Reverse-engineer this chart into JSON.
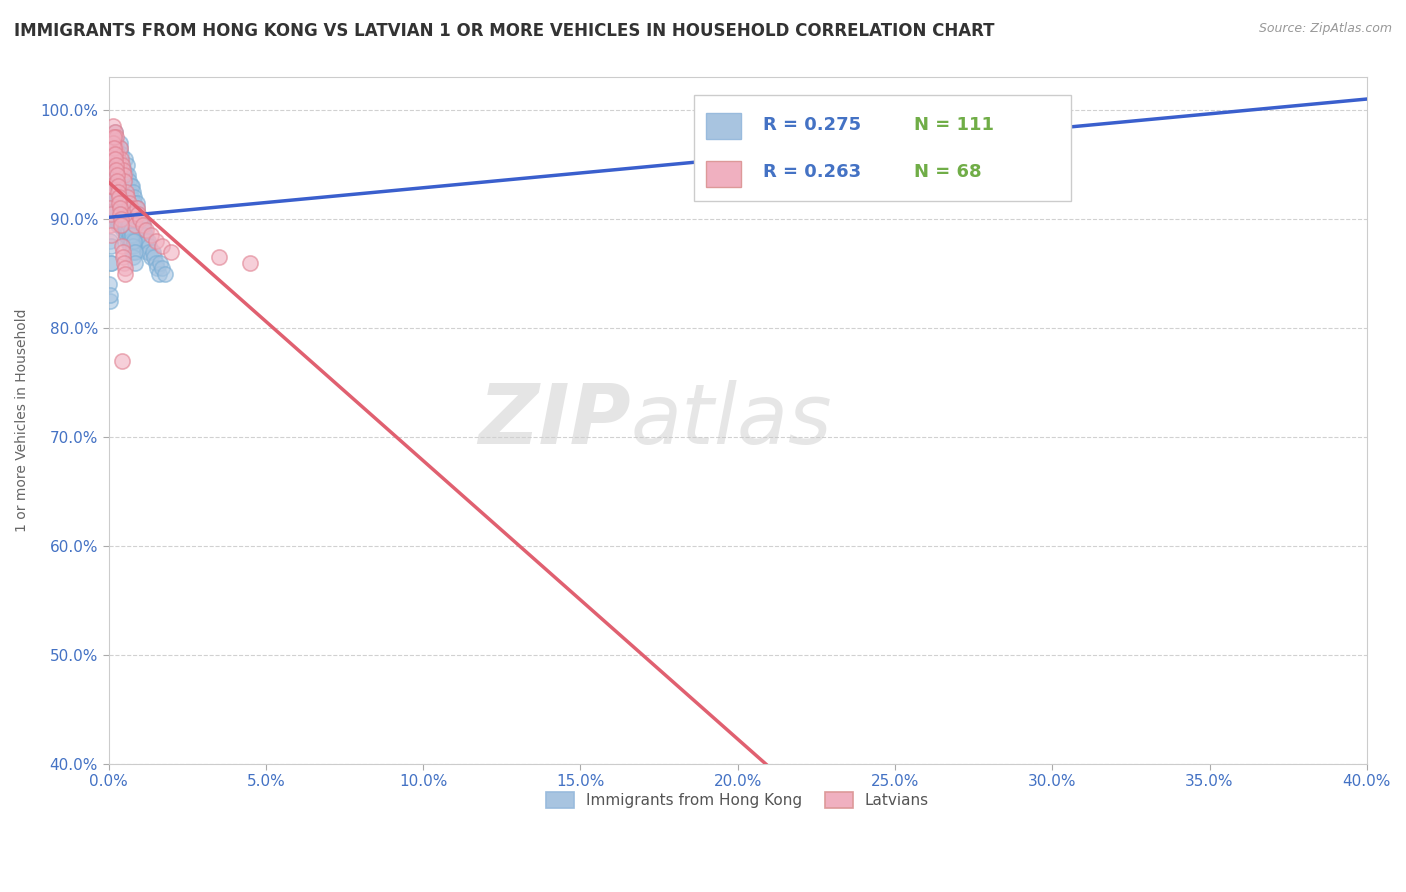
{
  "title": "IMMIGRANTS FROM HONG KONG VS LATVIAN 1 OR MORE VEHICLES IN HOUSEHOLD CORRELATION CHART",
  "source": "Source: ZipAtlas.com",
  "ylabel": "1 or more Vehicles in Household",
  "xmin": 0.0,
  "xmax": 40.0,
  "ymin": 40.0,
  "ymax": 103.0,
  "series1_label": "Immigrants from Hong Kong",
  "series2_label": "Latvians",
  "series1_color": "#a8c4e0",
  "series1_edge": "#7aadd4",
  "series2_color": "#f0b0c0",
  "series2_edge": "#e08090",
  "trendline1_color": "#3a5fcd",
  "trendline2_color": "#e06070",
  "series1_R": 0.275,
  "series1_N": 111,
  "series2_R": 0.263,
  "series2_N": 68,
  "legend_R_color": "#4472c4",
  "legend_N_color": "#70ad47",
  "watermark_zip": "ZIP",
  "watermark_atlas": "atlas",
  "bg_color": "#ffffff",
  "grid_color": "#cccccc",
  "tick_label_color": "#4472c4",
  "series1_x": [
    0.05,
    0.08,
    0.1,
    0.12,
    0.15,
    0.18,
    0.2,
    0.22,
    0.25,
    0.28,
    0.3,
    0.32,
    0.35,
    0.38,
    0.4,
    0.42,
    0.45,
    0.48,
    0.5,
    0.52,
    0.55,
    0.58,
    0.6,
    0.62,
    0.65,
    0.68,
    0.7,
    0.72,
    0.75,
    0.78,
    0.8,
    0.82,
    0.85,
    0.88,
    0.9,
    0.92,
    0.95,
    0.98,
    1.0,
    1.02,
    1.05,
    1.08,
    1.1,
    1.12,
    1.15,
    1.18,
    1.2,
    1.22,
    1.25,
    1.28,
    1.3,
    1.35,
    1.4,
    1.45,
    1.5,
    1.55,
    1.6,
    1.65,
    1.7,
    1.8,
    0.03,
    0.04,
    0.06,
    0.07,
    0.09,
    0.11,
    0.13,
    0.14,
    0.16,
    0.17,
    0.19,
    0.21,
    0.23,
    0.24,
    0.26,
    0.27,
    0.29,
    0.31,
    0.33,
    0.34,
    0.36,
    0.37,
    0.39,
    0.41,
    0.43,
    0.44,
    0.46,
    0.47,
    0.49,
    0.51,
    0.53,
    0.54,
    0.56,
    0.57,
    0.59,
    0.61,
    0.63,
    0.64,
    0.66,
    0.67,
    0.69,
    0.71,
    0.73,
    0.74,
    0.76,
    0.77,
    0.79,
    0.81,
    0.83,
    0.84,
    25.0
  ],
  "series1_y": [
    88.0,
    86.0,
    91.0,
    94.0,
    97.5,
    96.0,
    98.0,
    95.5,
    97.0,
    96.5,
    95.0,
    94.5,
    96.5,
    97.0,
    96.0,
    95.0,
    94.0,
    93.5,
    94.5,
    95.5,
    94.0,
    93.0,
    95.0,
    94.0,
    93.5,
    92.5,
    93.0,
    92.0,
    93.0,
    92.5,
    92.0,
    91.5,
    91.0,
    90.5,
    91.5,
    91.0,
    90.5,
    90.0,
    89.5,
    90.0,
    89.0,
    88.5,
    89.5,
    89.0,
    88.5,
    88.0,
    87.5,
    87.0,
    88.0,
    87.5,
    87.0,
    86.5,
    87.0,
    86.5,
    86.0,
    85.5,
    85.0,
    86.0,
    85.5,
    85.0,
    84.0,
    82.5,
    83.0,
    87.5,
    86.0,
    90.0,
    93.5,
    92.5,
    91.5,
    90.5,
    92.0,
    91.0,
    90.0,
    93.0,
    92.0,
    91.0,
    90.5,
    89.5,
    92.5,
    91.5,
    90.5,
    89.5,
    91.5,
    90.5,
    89.5,
    90.0,
    89.0,
    90.5,
    89.5,
    90.5,
    89.5,
    88.5,
    90.0,
    89.0,
    88.0,
    90.0,
    89.0,
    88.0,
    89.5,
    88.5,
    87.5,
    89.0,
    88.0,
    87.0,
    88.5,
    87.5,
    86.5,
    88.0,
    87.0,
    86.0,
    100.0
  ],
  "series2_x": [
    0.05,
    0.08,
    0.1,
    0.12,
    0.15,
    0.18,
    0.2,
    0.22,
    0.25,
    0.28,
    0.3,
    0.32,
    0.35,
    0.38,
    0.4,
    0.42,
    0.45,
    0.48,
    0.5,
    0.55,
    0.6,
    0.65,
    0.7,
    0.75,
    0.8,
    0.85,
    0.9,
    0.95,
    1.0,
    1.1,
    1.2,
    1.35,
    1.5,
    1.7,
    2.0,
    3.5,
    4.5,
    0.03,
    0.04,
    0.06,
    0.07,
    0.09,
    0.11,
    0.13,
    0.14,
    0.16,
    0.17,
    0.19,
    0.21,
    0.23,
    0.24,
    0.26,
    0.27,
    0.29,
    0.31,
    0.33,
    0.34,
    0.36,
    0.37,
    0.39,
    0.41,
    0.43,
    0.44,
    0.46,
    0.47,
    0.49,
    0.51,
    0.53
  ],
  "series2_y": [
    94.0,
    92.0,
    95.5,
    97.5,
    98.5,
    97.0,
    98.0,
    96.5,
    97.5,
    96.0,
    95.5,
    95.0,
    94.5,
    96.5,
    95.5,
    95.0,
    94.5,
    94.0,
    93.5,
    92.5,
    92.0,
    91.5,
    91.0,
    90.5,
    90.0,
    89.5,
    91.0,
    90.5,
    90.0,
    89.5,
    89.0,
    88.5,
    88.0,
    87.5,
    87.0,
    86.5,
    86.0,
    93.0,
    91.0,
    89.5,
    90.5,
    88.5,
    93.0,
    96.0,
    97.0,
    97.5,
    96.5,
    96.0,
    95.5,
    95.0,
    94.5,
    94.0,
    93.5,
    93.0,
    92.5,
    92.0,
    91.5,
    91.0,
    90.5,
    90.0,
    89.5,
    77.0,
    87.5,
    87.0,
    86.5,
    86.0,
    85.5,
    85.0
  ],
  "ytick_labels": [
    "40.0%",
    "50.0%",
    "60.0%",
    "70.0%",
    "80.0%",
    "90.0%",
    "100.0%"
  ],
  "ytick_values": [
    40,
    50,
    60,
    70,
    80,
    90,
    100
  ],
  "xtick_labels": [
    "0.0%",
    "5.0%",
    "10.0%",
    "15.0%",
    "20.0%",
    "25.0%",
    "30.0%",
    "35.0%",
    "40.0%"
  ],
  "xtick_values": [
    0,
    5,
    10,
    15,
    20,
    25,
    30,
    35,
    40
  ]
}
